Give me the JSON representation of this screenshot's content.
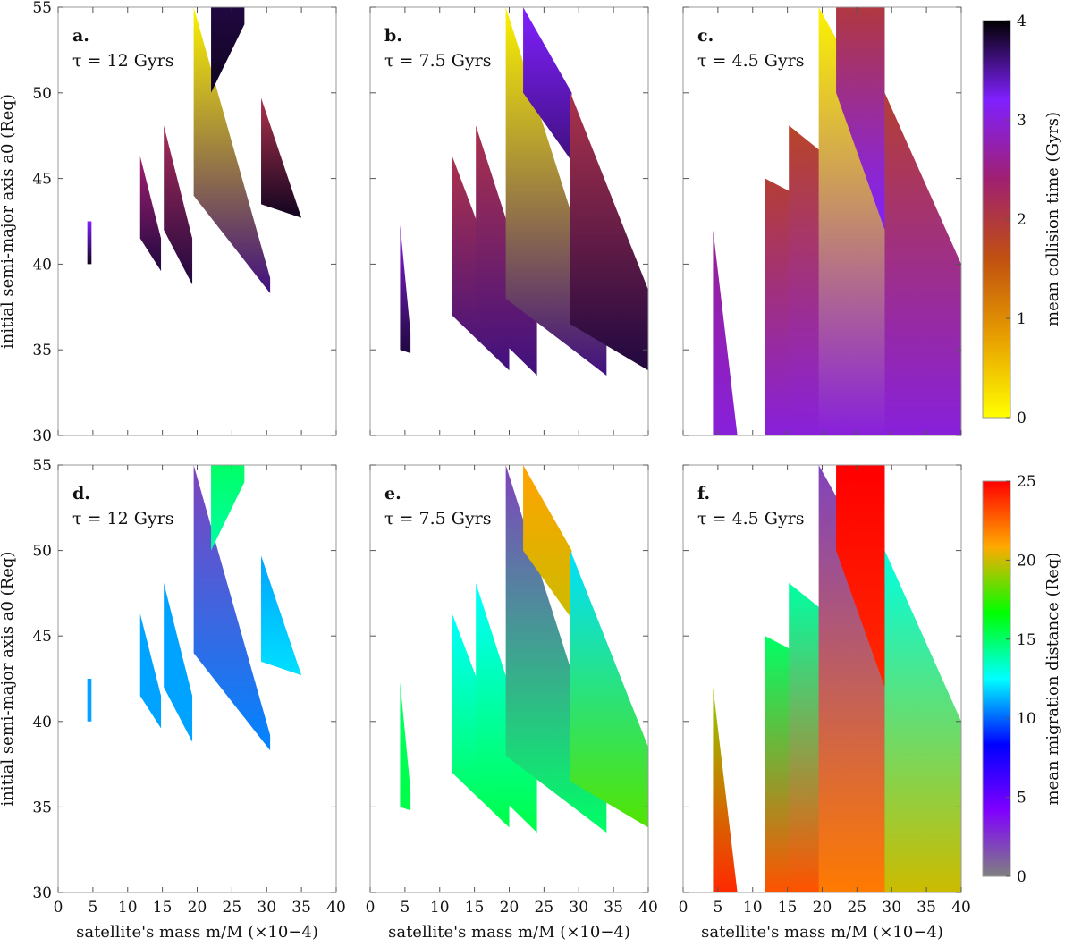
{
  "chart_data": [
    {
      "type": "heatmap",
      "panel": "a.",
      "tau_label": "τ = 12 Gyrs",
      "row": "top",
      "col": 0,
      "xlabel": "",
      "ylabel": "initial semi-major axis a0 (Req)",
      "xlim": [
        0,
        40
      ],
      "ylim": [
        30,
        55
      ],
      "x_ticks": [
        "0",
        "5",
        "10",
        "15",
        "20",
        "25",
        "30",
        "35",
        "40"
      ],
      "y_ticks": [
        "30",
        "35",
        "40",
        "45",
        "50",
        "55"
      ],
      "colorbar": "collision",
      "regions": [
        {
          "x": [
            4.2,
            4.8
          ],
          "top": [
            42.5,
            42.5
          ],
          "bottom": [
            40.0,
            40.0
          ],
          "v_top": 3.2,
          "v_bottom": 3.9
        },
        {
          "x": [
            11.8,
            14.8
          ],
          "top": [
            46.3,
            41.5
          ],
          "bottom": [
            41.5,
            39.6
          ],
          "v_top": 2.4,
          "v_bottom": 3.8
        },
        {
          "x": [
            15.2,
            19.3
          ],
          "top": [
            48.1,
            41.5
          ],
          "bottom": [
            42.0,
            38.8
          ],
          "v_top": 2.2,
          "v_bottom": 3.8
        },
        {
          "x": [
            19.5,
            30.5
          ],
          "top": [
            55,
            39.2
          ],
          "bottom": [
            44.0,
            38.3
          ],
          "v_top": 0.1,
          "v_bottom": 3.6
        },
        {
          "x": [
            22.0,
            26.8
          ],
          "top": [
            55,
            55
          ],
          "bottom": [
            50.0,
            54.0
          ],
          "v_top": 3.8,
          "v_bottom": 3.9
        },
        {
          "x": [
            29.2,
            35.0
          ],
          "top": [
            49.7,
            42.7
          ],
          "bottom": [
            43.5,
            42.7
          ],
          "v_top": 2.1,
          "v_bottom": 3.9
        }
      ]
    },
    {
      "type": "heatmap",
      "panel": "b.",
      "tau_label": "τ = 7.5 Gyrs",
      "row": "top",
      "col": 1,
      "xlabel": "",
      "ylabel": "",
      "xlim": [
        0,
        40
      ],
      "ylim": [
        30,
        55
      ],
      "x_ticks": [
        "0",
        "5",
        "10",
        "15",
        "20",
        "25",
        "30",
        "35",
        "40"
      ],
      "y_ticks": [
        "30",
        "35",
        "40",
        "45",
        "50",
        "55"
      ],
      "colorbar": "collision",
      "regions": [
        {
          "x": [
            4.3,
            5.8
          ],
          "top": [
            42.3,
            36.0
          ],
          "bottom": [
            35.0,
            34.8
          ],
          "v_top": 3.0,
          "v_bottom": 3.8
        },
        {
          "x": [
            11.8,
            20.0
          ],
          "top": [
            46.3,
            37.5
          ],
          "bottom": [
            37.0,
            33.8
          ],
          "v_top": 2.1,
          "v_bottom": 3.6
        },
        {
          "x": [
            15.2,
            24.0
          ],
          "top": [
            48.1,
            37.0
          ],
          "bottom": [
            37.0,
            33.5
          ],
          "v_top": 2.1,
          "v_bottom": 3.6
        },
        {
          "x": [
            19.5,
            34.0
          ],
          "top": [
            55,
            36.5
          ],
          "bottom": [
            38.0,
            33.5
          ],
          "v_top": 0.1,
          "v_bottom": 3.6
        },
        {
          "x": [
            22.0,
            29.0
          ],
          "top": [
            55,
            50.0
          ],
          "bottom": [
            50.0,
            46.0
          ],
          "v_top": 3.2,
          "v_bottom": 3.6
        },
        {
          "x": [
            28.8,
            40.0
          ],
          "top": [
            50.0,
            38.5
          ],
          "bottom": [
            36.5,
            33.8
          ],
          "v_top": 2.1,
          "v_bottom": 3.8
        }
      ]
    },
    {
      "type": "heatmap",
      "panel": "c.",
      "tau_label": "τ = 4.5 Gyrs",
      "row": "top",
      "col": 2,
      "xlabel": "",
      "ylabel": "",
      "xlim": [
        0,
        40
      ],
      "ylim": [
        30,
        55
      ],
      "x_ticks": [
        "0",
        "5",
        "10",
        "15",
        "20",
        "25",
        "30",
        "35",
        "40"
      ],
      "y_ticks": [
        "30",
        "35",
        "40",
        "45",
        "50",
        "55"
      ],
      "colorbar": "collision",
      "regions": [
        {
          "x": [
            4.3,
            7.8
          ],
          "top": [
            42.0,
            30.0
          ],
          "bottom": [
            30.0,
            30.0
          ],
          "v_top": 2.6,
          "v_bottom": 3.0
        },
        {
          "x": [
            11.8,
            40.0
          ],
          "top": [
            45.0,
            39.0
          ],
          "bottom": [
            30.0,
            30.0
          ],
          "v_top": 1.9,
          "v_bottom": 3.0
        },
        {
          "x": [
            15.2,
            40.0
          ],
          "top": [
            48.1,
            40.0
          ],
          "bottom": [
            30.0,
            30.0
          ],
          "v_top": 1.8,
          "v_bottom": 3.0
        },
        {
          "x": [
            19.5,
            40.0
          ],
          "top": [
            55,
            40.0
          ],
          "bottom": [
            30.0,
            30.0
          ],
          "v_top": 0.1,
          "v_bottom": 3.0
        },
        {
          "x": [
            22.0,
            29.0
          ],
          "top": [
            55,
            55
          ],
          "bottom": [
            50.0,
            42.0
          ],
          "v_top": 2.0,
          "v_bottom": 3.2
        },
        {
          "x": [
            29.0,
            40.0
          ],
          "top": [
            50.0,
            40.0
          ],
          "bottom": [
            30.0,
            30.0
          ],
          "v_top": 1.9,
          "v_bottom": 3.0
        }
      ]
    },
    {
      "type": "heatmap",
      "panel": "d.",
      "tau_label": "τ = 12 Gyrs",
      "row": "bottom",
      "col": 0,
      "xlabel": "satellite's mass m/M (×10−4)",
      "ylabel": "initial semi-major axis a0 (Req)",
      "xlim": [
        0,
        40
      ],
      "ylim": [
        30,
        55
      ],
      "x_ticks": [
        "0",
        "5",
        "10",
        "15",
        "20",
        "25",
        "30",
        "35",
        "40"
      ],
      "y_ticks": [
        "30",
        "35",
        "40",
        "45",
        "50",
        "55"
      ],
      "colorbar": "migration",
      "regions": [
        {
          "x": [
            4.2,
            4.8
          ],
          "top": [
            42.5,
            42.5
          ],
          "bottom": [
            40.0,
            40.0
          ],
          "v_top": 11.0,
          "v_bottom": 11.0
        },
        {
          "x": [
            11.8,
            14.8
          ],
          "top": [
            46.3,
            41.5
          ],
          "bottom": [
            41.5,
            39.6
          ],
          "v_top": 11.0,
          "v_bottom": 11.0
        },
        {
          "x": [
            15.2,
            19.3
          ],
          "top": [
            48.1,
            41.5
          ],
          "bottom": [
            42.0,
            38.8
          ],
          "v_top": 11.0,
          "v_bottom": 11.0
        },
        {
          "x": [
            19.5,
            30.5
          ],
          "top": [
            55,
            39.2
          ],
          "bottom": [
            44.0,
            38.3
          ],
          "v_top": 2.0,
          "v_bottom": 10.5
        },
        {
          "x": [
            22.0,
            26.8
          ],
          "top": [
            55,
            55
          ],
          "bottom": [
            50.0,
            54.0
          ],
          "v_top": 15.0,
          "v_bottom": 14.0
        },
        {
          "x": [
            29.2,
            35.0
          ],
          "top": [
            49.7,
            42.7
          ],
          "bottom": [
            43.5,
            42.7
          ],
          "v_top": 11.0,
          "v_bottom": 12.0
        }
      ]
    },
    {
      "type": "heatmap",
      "panel": "e.",
      "tau_label": "τ = 7.5 Gyrs",
      "row": "bottom",
      "col": 1,
      "xlabel": "satellite's mass m/M (×10−4)",
      "ylabel": "",
      "xlim": [
        0,
        40
      ],
      "ylim": [
        30,
        55
      ],
      "x_ticks": [
        "0",
        "5",
        "10",
        "15",
        "20",
        "25",
        "30",
        "35",
        "40"
      ],
      "y_ticks": [
        "30",
        "35",
        "40",
        "45",
        "50",
        "55"
      ],
      "colorbar": "migration",
      "regions": [
        {
          "x": [
            4.3,
            5.8
          ],
          "top": [
            42.3,
            36.0
          ],
          "bottom": [
            35.0,
            34.8
          ],
          "v_top": 15.0,
          "v_bottom": 15.5
        },
        {
          "x": [
            11.8,
            20.0
          ],
          "top": [
            46.3,
            37.5
          ],
          "bottom": [
            37.0,
            33.8
          ],
          "v_top": 12.5,
          "v_bottom": 15.5
        },
        {
          "x": [
            15.2,
            24.0
          ],
          "top": [
            48.1,
            37.0
          ],
          "bottom": [
            37.0,
            33.5
          ],
          "v_top": 12.5,
          "v_bottom": 15.5
        },
        {
          "x": [
            19.5,
            34.0
          ],
          "top": [
            55,
            36.5
          ],
          "bottom": [
            38.0,
            33.5
          ],
          "v_top": 2.0,
          "v_bottom": 15.0
        },
        {
          "x": [
            22.0,
            29.0
          ],
          "top": [
            55,
            50.0
          ],
          "bottom": [
            50.0,
            46.0
          ],
          "v_top": 21.0,
          "v_bottom": 20.0
        },
        {
          "x": [
            28.8,
            40.0
          ],
          "top": [
            50.0,
            38.5
          ],
          "bottom": [
            36.5,
            33.8
          ],
          "v_top": 12.0,
          "v_bottom": 18.0
        }
      ]
    },
    {
      "type": "heatmap",
      "panel": "f.",
      "tau_label": "τ = 4.5 Gyrs",
      "row": "bottom",
      "col": 2,
      "xlabel": "satellite's mass m/M (×10−4)",
      "ylabel": "",
      "xlim": [
        0,
        40
      ],
      "ylim": [
        30,
        55
      ],
      "x_ticks": [
        "0",
        "5",
        "10",
        "15",
        "20",
        "25",
        "30",
        "35",
        "40"
      ],
      "y_ticks": [
        "30",
        "35",
        "40",
        "45",
        "50",
        "55"
      ],
      "colorbar": "migration",
      "regions": [
        {
          "x": [
            4.3,
            7.8
          ],
          "top": [
            42.0,
            30.0
          ],
          "bottom": [
            30.0,
            30.0
          ],
          "v_top": 19.0,
          "v_bottom": 24.0
        },
        {
          "x": [
            11.8,
            40.0
          ],
          "top": [
            45.0,
            39.0
          ],
          "bottom": [
            30.0,
            30.0
          ],
          "v_top": 15.0,
          "v_bottom": 23.0
        },
        {
          "x": [
            15.2,
            40.0
          ],
          "top": [
            48.1,
            40.0
          ],
          "bottom": [
            30.0,
            30.0
          ],
          "v_top": 14.0,
          "v_bottom": 23.0
        },
        {
          "x": [
            19.5,
            40.0
          ],
          "top": [
            55,
            40.0
          ],
          "bottom": [
            30.0,
            30.0
          ],
          "v_top": 2.0,
          "v_bottom": 22.0
        },
        {
          "x": [
            22.0,
            29.0
          ],
          "top": [
            55,
            55
          ],
          "bottom": [
            50.0,
            42.0
          ],
          "v_top": 25.0,
          "v_bottom": 24.0
        },
        {
          "x": [
            29.0,
            40.0
          ],
          "top": [
            50.0,
            40.0
          ],
          "bottom": [
            30.0,
            30.0
          ],
          "v_top": 13.0,
          "v_bottom": 20.0
        }
      ]
    }
  ],
  "colorbars": {
    "collision": {
      "label": "mean collision time (Gyrs)",
      "range": [
        0,
        4
      ],
      "ticks": [
        "0",
        "1",
        "2",
        "3",
        "4"
      ],
      "stops": [
        "#ffff00",
        "#e8a000",
        "#c05010",
        "#a02070",
        "#8020ff",
        "#000000"
      ]
    },
    "migration": {
      "label": "mean migration distance (Req)",
      "range": [
        0,
        25
      ],
      "ticks": [
        "0",
        "5",
        "10",
        "15",
        "20",
        "25"
      ],
      "stops": [
        "#808080",
        "#8000ff",
        "#0000ff",
        "#00ffff",
        "#00ff00",
        "#ffaa00",
        "#ff0000"
      ]
    }
  }
}
